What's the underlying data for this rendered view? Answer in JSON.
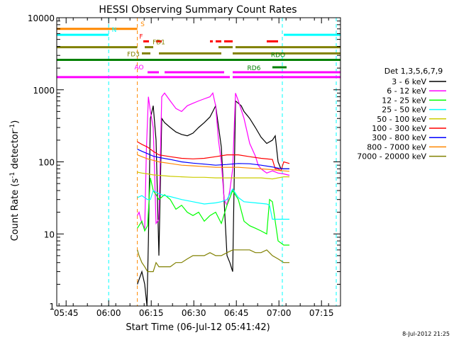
{
  "chart_data": {
    "type": "line",
    "title": "HESSI Observing Summary Count Rates",
    "xlabel": "Start Time (06-Jul-12 05:41:42)",
    "ylabel_main": "Count Rate (s",
    "ylabel_sup1": "-1",
    "ylabel_mid": " detector",
    "ylabel_sup2": "-1",
    "ylabel_end": ")",
    "x_unit": "minutes after 05:41:42",
    "xlim": [
      0,
      100
    ],
    "ylim": [
      1,
      10000
    ],
    "yscale": "log",
    "x_ticks": [
      {
        "value": 3.3,
        "label": "05:45"
      },
      {
        "value": 18.3,
        "label": "06:00"
      },
      {
        "value": 33.3,
        "label": "06:15"
      },
      {
        "value": 48.3,
        "label": "06:30"
      },
      {
        "value": 63.3,
        "label": "06:45"
      },
      {
        "value": 78.3,
        "label": "07:00"
      },
      {
        "value": 93.3,
        "label": "07:15"
      }
    ],
    "y_ticks": [
      {
        "value": 1,
        "label": "1"
      },
      {
        "value": 10,
        "label": "10"
      },
      {
        "value": 100,
        "label": "100"
      },
      {
        "value": 1000,
        "label": "1000"
      },
      {
        "value": 10000,
        "label": "10000"
      }
    ],
    "legend_title": "Det 1,3,5,6,7,9",
    "legend_position": "right",
    "series": [
      {
        "name": "3 - 6 keV",
        "color": "#000000",
        "x": [
          28.4,
          30,
          31,
          31.8,
          32.3,
          33,
          34,
          35,
          36,
          37,
          38,
          40,
          42,
          44,
          46,
          48,
          50,
          52,
          54,
          55,
          56,
          58,
          60,
          61,
          62,
          63,
          64,
          65,
          66,
          68,
          70,
          72,
          74,
          76,
          77,
          78,
          79,
          80,
          82
        ],
        "y": [
          2,
          3,
          2,
          1,
          8,
          400,
          600,
          200,
          5,
          400,
          350,
          300,
          260,
          240,
          230,
          250,
          300,
          350,
          420,
          500,
          600,
          160,
          5,
          4,
          3,
          700,
          650,
          600,
          500,
          400,
          300,
          220,
          180,
          200,
          230,
          100,
          80,
          80,
          80
        ]
      },
      {
        "name": "6 - 12 keV",
        "color": "#ff00ff",
        "x": [
          28.4,
          29,
          30,
          31,
          31.6,
          32.3,
          33,
          34,
          35,
          36,
          37,
          38,
          40,
          42,
          44,
          46,
          48,
          50,
          52,
          54,
          55,
          56,
          57,
          58,
          59,
          60,
          61,
          62,
          63,
          64,
          66,
          68,
          70,
          71,
          72,
          74,
          76,
          78,
          80,
          82
        ],
        "y": [
          18,
          20,
          14,
          12,
          150,
          800,
          500,
          300,
          14,
          16,
          800,
          900,
          700,
          550,
          500,
          600,
          650,
          700,
          750,
          800,
          900,
          600,
          200,
          100,
          30,
          25,
          40,
          80,
          900,
          700,
          400,
          180,
          120,
          90,
          80,
          70,
          75,
          70,
          68,
          65
        ]
      },
      {
        "name": "12 - 25 keV",
        "color": "#00ff00",
        "x": [
          28.4,
          30,
          31,
          32,
          33,
          34,
          35,
          36,
          38,
          40,
          42,
          44,
          46,
          48,
          50,
          52,
          54,
          56,
          58,
          60,
          62,
          64,
          66,
          68,
          70,
          72,
          74,
          75,
          76,
          78,
          80,
          82
        ],
        "y": [
          12,
          15,
          11,
          13,
          60,
          40,
          35,
          30,
          35,
          30,
          22,
          25,
          20,
          18,
          20,
          15,
          18,
          20,
          14,
          25,
          40,
          30,
          15,
          13,
          12,
          11,
          10,
          30,
          28,
          8,
          7,
          7
        ]
      },
      {
        "name": "25 - 50 keV",
        "color": "#00ffff",
        "x": [
          28.4,
          30,
          32,
          33,
          34,
          36,
          38,
          40,
          44,
          48,
          52,
          56,
          58,
          60,
          62,
          64,
          66,
          70,
          74,
          75,
          76,
          78,
          80,
          82
        ],
        "y": [
          32,
          34,
          30,
          30,
          40,
          36,
          34,
          33,
          30,
          28,
          26,
          27,
          28,
          30,
          42,
          32,
          28,
          27,
          26,
          25,
          16,
          16,
          16,
          16
        ]
      },
      {
        "name": "50 - 100 keV",
        "color": "#cccc00",
        "x": [
          28.4,
          30,
          32,
          34,
          36,
          40,
          44,
          48,
          52,
          56,
          60,
          64,
          68,
          72,
          76,
          78,
          80,
          82
        ],
        "y": [
          72,
          70,
          68,
          66,
          65,
          63,
          62,
          61,
          61,
          60,
          60,
          60,
          60,
          60,
          58,
          60,
          62,
          62
        ]
      },
      {
        "name": "100 - 300 keV",
        "color": "#ff0000",
        "x": [
          28.4,
          30,
          32,
          34,
          36,
          40,
          44,
          48,
          52,
          56,
          60,
          64,
          68,
          72,
          76,
          77,
          78,
          79,
          80,
          82
        ],
        "y": [
          190,
          175,
          160,
          140,
          125,
          118,
          112,
          110,
          112,
          118,
          125,
          125,
          118,
          112,
          108,
          80,
          80,
          75,
          100,
          95
        ]
      },
      {
        "name": "300 - 800 keV",
        "color": "#0000ff",
        "x": [
          28.4,
          30,
          32,
          34,
          36,
          40,
          44,
          48,
          52,
          56,
          60,
          64,
          68,
          72,
          76,
          78,
          80,
          82
        ],
        "y": [
          150,
          140,
          130,
          120,
          115,
          108,
          100,
          96,
          93,
          90,
          92,
          95,
          94,
          90,
          85,
          82,
          80,
          80
        ]
      },
      {
        "name": "800 - 7000 keV",
        "color": "#ff8800",
        "x": [
          28.4,
          30,
          32,
          34,
          36,
          40,
          44,
          48,
          52,
          56,
          60,
          64,
          68,
          72,
          76,
          78,
          80,
          82
        ],
        "y": [
          125,
          118,
          110,
          105,
          100,
          95,
          90,
          88,
          86,
          84,
          84,
          84,
          82,
          80,
          78,
          76,
          75,
          74
        ]
      },
      {
        "name": "7000 - 20000 keV",
        "color": "#808000",
        "x": [
          28.4,
          29,
          30,
          31,
          32,
          33,
          34,
          35,
          36,
          38,
          40,
          42,
          44,
          46,
          48,
          50,
          52,
          54,
          56,
          58,
          60,
          62,
          64,
          66,
          68,
          70,
          72,
          74,
          76,
          78,
          80,
          82
        ],
        "y": [
          6,
          5,
          4,
          3.5,
          3,
          3,
          3,
          4,
          3.5,
          3.5,
          3.5,
          4,
          4,
          4.5,
          5,
          5,
          5,
          5.5,
          5,
          5,
          5.5,
          6,
          6,
          6,
          6,
          5.5,
          5.5,
          6,
          5,
          4.5,
          4,
          4
        ]
      }
    ],
    "flag_bars": [
      {
        "label": "S",
        "color": "#ff8800",
        "y": 7000,
        "segments": [
          [
            0,
            28.4
          ]
        ]
      },
      {
        "label": "N",
        "color": "#00ffff",
        "y": 5800,
        "segments": [
          [
            0,
            18.3
          ],
          [
            80,
            100
          ]
        ]
      },
      {
        "label": "F",
        "color": "#ff0000",
        "y": 4700,
        "segments": [
          [
            30.5,
            32.5
          ],
          [
            35,
            37
          ],
          [
            54,
            55
          ],
          [
            56,
            58
          ],
          [
            59,
            62
          ],
          [
            74,
            78
          ]
        ]
      },
      {
        "label": "FD1",
        "color": "#808000",
        "y": 3900,
        "segments": [
          [
            0,
            28.4
          ],
          [
            31,
            34
          ],
          [
            57,
            62
          ],
          [
            63,
            100
          ]
        ]
      },
      {
        "label": "FD3",
        "color": "#808000",
        "y": 3200,
        "segments": [
          [
            30,
            33
          ],
          [
            36,
            58
          ],
          [
            62,
            100
          ]
        ]
      },
      {
        "label": "RDO",
        "color": "#008000",
        "y": 2600,
        "segments": [
          [
            0,
            100
          ]
        ]
      },
      {
        "label": "RD6",
        "color": "#008000",
        "y": 2050,
        "segments": [
          [
            76,
            81
          ]
        ]
      },
      {
        "label": "AO",
        "color": "#ff00ff",
        "y": 1750,
        "segments": [
          [
            32,
            36
          ],
          [
            38,
            59
          ],
          [
            62,
            100
          ]
        ]
      },
      {
        "label": "",
        "color": "#ff00ff",
        "y": 1500,
        "segments": [
          [
            0,
            30
          ],
          [
            30,
            35
          ],
          [
            35,
            61
          ],
          [
            62,
            100
          ]
        ]
      }
    ],
    "event_lines": [
      {
        "x": 0,
        "color": "#00ffff"
      },
      {
        "x": 18.3,
        "color": "#00ffff"
      },
      {
        "x": 28.4,
        "color": "#ff8800"
      },
      {
        "x": 79.5,
        "color": "#00ffff"
      },
      {
        "x": 98.5,
        "color": "#00ffff"
      }
    ]
  },
  "footer": {
    "timestamp": "8-Jul-2012 21:25"
  }
}
